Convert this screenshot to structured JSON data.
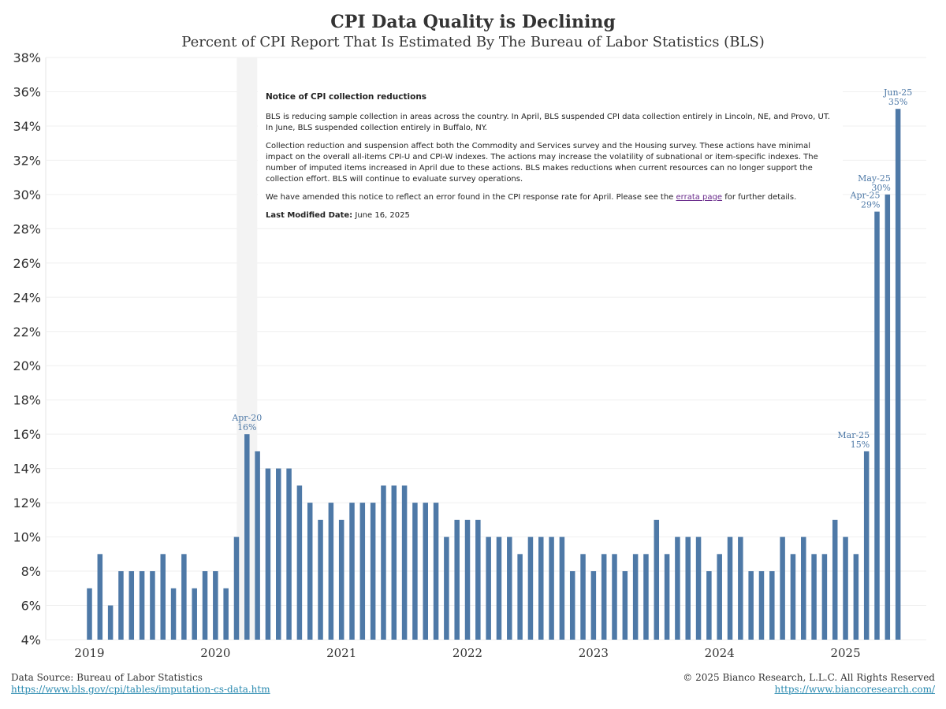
{
  "header": {
    "title": "CPI Data Quality is Declining",
    "subtitle": "Percent of CPI Report That Is Estimated By The Bureau of Labor Statistics (BLS)"
  },
  "notice": {
    "title": "Notice of CPI collection reductions",
    "p1": "BLS is reducing sample collection in areas across the country. In April, BLS suspended CPI data collection entirely in Lincoln, NE, and Provo, UT. In June, BLS suspended collection entirely in Buffalo, NY.",
    "p2": "Collection reduction and suspension affect both the Commodity and Services survey and the Housing survey. These actions have minimal impact on the overall all-items CPI-U and CPI-W indexes. The actions may increase the volatility of subnational or item-specific indexes. The number of imputed items increased in April due to these actions. BLS makes reductions when current resources can no longer support the collection effort. BLS will continue to evaluate survey operations.",
    "p3_before": "We have amended this notice to reflect an error found in the CPI response rate for April. Please see the ",
    "p3_link": "errata page",
    "p3_after": " for further details.",
    "modified_label": "Last Modified Date:",
    "modified_value": "June 16, 2025"
  },
  "footer": {
    "source": "Data Source: Bureau of Labor Statistics",
    "source_url": "https://www.bls.gov/cpi/tables/imputation-cs-data.htm",
    "copyright": "© 2025 Bianco Research, L.L.C. All Rights Reserved",
    "site_url": "https://www.biancoresearch.com/"
  },
  "chart_data": {
    "type": "bar",
    "title": "CPI Data Quality is Declining",
    "subtitle": "Percent of CPI Report That Is Estimated By The Bureau of Labor Statistics (BLS)",
    "bar_color": "#4e79a7",
    "ylim": [
      4,
      38
    ],
    "y_ticks": [
      "4%",
      "6%",
      "8%",
      "10%",
      "12%",
      "14%",
      "16%",
      "18%",
      "20%",
      "22%",
      "24%",
      "26%",
      "28%",
      "30%",
      "32%",
      "34%",
      "36%",
      "38%"
    ],
    "x_tick_labels": [
      "2019",
      "2020",
      "2021",
      "2022",
      "2023",
      "2024",
      "2025"
    ],
    "start_month": "2019-01",
    "values": [
      7,
      9,
      6,
      8,
      8,
      8,
      8,
      9,
      7,
      9,
      7,
      8,
      8,
      7,
      10,
      16,
      15,
      14,
      14,
      14,
      13,
      12,
      11,
      12,
      11,
      12,
      12,
      12,
      13,
      13,
      13,
      12,
      12,
      12,
      10,
      11,
      11,
      11,
      10,
      10,
      10,
      9,
      10,
      10,
      10,
      10,
      8,
      9,
      8,
      9,
      9,
      8,
      9,
      9,
      11,
      9,
      10,
      10,
      10,
      8,
      9,
      10,
      10,
      8,
      8,
      8,
      10,
      9,
      10,
      9,
      9,
      11,
      10,
      9,
      15,
      29,
      30,
      35
    ],
    "highlight_band": "2020-04",
    "annotations": [
      {
        "month": "2020-04",
        "line1": "Apr-20",
        "line2": "16%"
      },
      {
        "month": "2025-03",
        "line1": "Mar-25",
        "line2": "15%"
      },
      {
        "month": "2025-04",
        "line1": "Apr-25",
        "line2": "29%"
      },
      {
        "month": "2025-05",
        "line1": "May-25",
        "line2": "30%"
      },
      {
        "month": "2025-06",
        "line1": "Jun-25",
        "line2": "35%"
      }
    ],
    "grid": true
  }
}
